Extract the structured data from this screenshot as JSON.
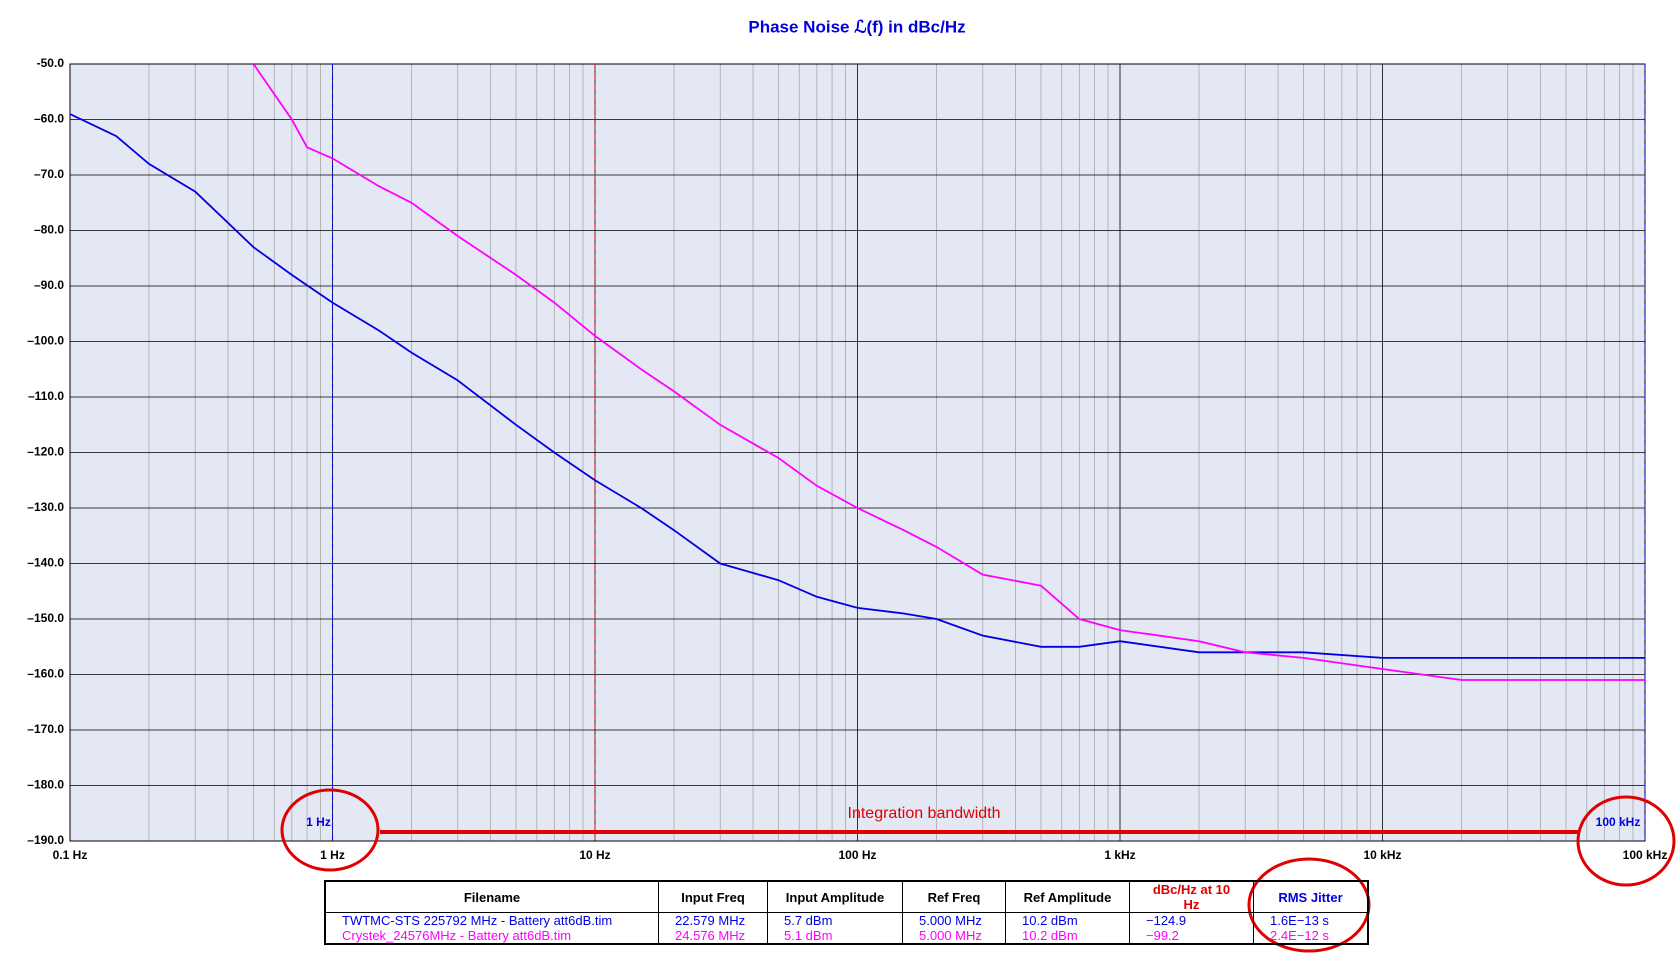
{
  "chart_data": {
    "type": "line",
    "title": "Phase Noise ℒ(f) in dBc/Hz",
    "xscale": "log",
    "grid": true,
    "background": "#e4e8f4",
    "xlim": [
      0.1,
      100000
    ],
    "ylim": [
      -190,
      -50
    ],
    "xticks": [
      {
        "value": 0.1,
        "label": "0.1 Hz"
      },
      {
        "value": 1,
        "label": "1 Hz"
      },
      {
        "value": 10,
        "label": "10 Hz"
      },
      {
        "value": 100,
        "label": "100 Hz"
      },
      {
        "value": 1000,
        "label": "1 kHz"
      },
      {
        "value": 10000,
        "label": "10 kHz"
      },
      {
        "value": 100000,
        "label": "100 kHz"
      }
    ],
    "yticks": [
      {
        "value": -50,
        "label": "-50.0"
      },
      {
        "value": -60,
        "label": "–60.0"
      },
      {
        "value": -70,
        "label": "–70.0"
      },
      {
        "value": -80,
        "label": "–80.0"
      },
      {
        "value": -90,
        "label": "–90.0"
      },
      {
        "value": -100,
        "label": "–100.0"
      },
      {
        "value": -110,
        "label": "–110.0"
      },
      {
        "value": -120,
        "label": "–120.0"
      },
      {
        "value": -130,
        "label": "–130.0"
      },
      {
        "value": -140,
        "label": "–140.0"
      },
      {
        "value": -150,
        "label": "–150.0"
      },
      {
        "value": -160,
        "label": "–160.0"
      },
      {
        "value": -170,
        "label": "–170.0"
      },
      {
        "value": -180,
        "label": "–180.0"
      },
      {
        "value": -190,
        "label": "–190.0"
      }
    ],
    "series": [
      {
        "name": "TWTMC-STS 225792 MHz - Battery att6dB.tim",
        "color": "#0000e0",
        "x": [
          0.1,
          0.15,
          0.2,
          0.3,
          0.5,
          0.7,
          1,
          1.5,
          2,
          3,
          5,
          7,
          10,
          15,
          20,
          30,
          50,
          70,
          100,
          150,
          200,
          300,
          500,
          700,
          1000,
          2000,
          3000,
          5000,
          10000,
          20000,
          30000,
          50000,
          100000
        ],
        "values": [
          -59,
          -63,
          -68,
          -73,
          -83,
          -88,
          -93,
          -98,
          -102,
          -107,
          -115,
          -120,
          -125,
          -130,
          -134,
          -140,
          -143,
          -146,
          -148,
          -149,
          -150,
          -153,
          -155,
          -155,
          -154,
          -156,
          -156,
          -156,
          -157,
          -157,
          -157,
          -157,
          -157
        ]
      },
      {
        "name": "Crystek_24576MHz - Battery att6dB.tim",
        "color": "#ff00ff",
        "x": [
          0.5,
          0.7,
          0.8,
          1,
          1.5,
          2,
          3,
          5,
          7,
          10,
          15,
          20,
          30,
          50,
          70,
          100,
          150,
          200,
          300,
          500,
          700,
          1000,
          2000,
          3000,
          5000,
          10000,
          20000,
          30000,
          50000,
          100000
        ],
        "values": [
          -50,
          -60,
          -65,
          -67,
          -72,
          -75,
          -81,
          -88,
          -93,
          -99,
          -105,
          -109,
          -115,
          -121,
          -126,
          -130,
          -134,
          -137,
          -142,
          -144,
          -150,
          -152,
          -154,
          -156,
          -157,
          -159,
          -161,
          -161,
          -161,
          -161
        ]
      }
    ],
    "reference_line": {
      "x": 10,
      "color": "#e00000"
    },
    "integration_bandwidth": {
      "label": "Integration bandwidth",
      "start": 1,
      "end": 100000,
      "start_label": "1 Hz",
      "end_label": "100 kHz",
      "color": "#0000e0"
    },
    "table": {
      "columns": [
        "Filename",
        "Input Freq",
        "Input Amplitude",
        "Ref Freq",
        "Ref Amplitude",
        "dBc/Hz at 10 Hz",
        "RMS Jitter"
      ],
      "rows": [
        [
          "TWTMC-STS 225792 MHz - Battery att6dB.tim",
          "22.579 MHz",
          "5.7 dBm",
          "5.000 MHz",
          "10.2 dBm",
          "−124.9",
          "1.6E−13 s"
        ],
        [
          "Crystek_24576MHz - Battery att6dB.tim",
          "24.576 MHz",
          "5.1 dBm",
          "5.000 MHz",
          "10.2 dBm",
          "−99.2",
          "2.4E−12 s"
        ]
      ]
    }
  }
}
